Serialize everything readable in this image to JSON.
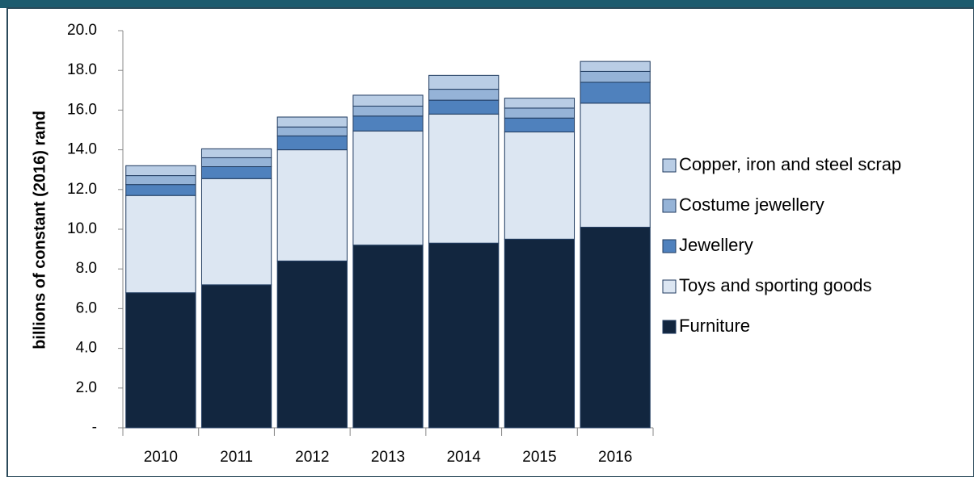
{
  "chart_data": {
    "type": "stacked_bar",
    "y_label": "billions of constant (2016) rand",
    "categories": [
      "2010",
      "2011",
      "2012",
      "2013",
      "2014",
      "2015",
      "2016"
    ],
    "series": [
      {
        "name": "Furniture",
        "color": "#12263f",
        "values": [
          6.8,
          7.2,
          8.4,
          9.2,
          9.3,
          9.5,
          10.1
        ]
      },
      {
        "name": "Toys and sporting goods",
        "color": "#dce6f2",
        "values": [
          4.9,
          5.35,
          5.6,
          5.75,
          6.5,
          5.4,
          6.25
        ]
      },
      {
        "name": "Jewellery",
        "color": "#4f81bd",
        "values": [
          0.55,
          0.6,
          0.7,
          0.75,
          0.7,
          0.7,
          1.05
        ]
      },
      {
        "name": "Costume jewellery",
        "color": "#95b3d7",
        "values": [
          0.45,
          0.45,
          0.45,
          0.5,
          0.55,
          0.5,
          0.55
        ]
      },
      {
        "name": "Copper, iron and steel scrap",
        "color": "#b9cde5",
        "values": [
          0.5,
          0.45,
          0.5,
          0.55,
          0.7,
          0.5,
          0.5
        ]
      }
    ],
    "ylim": [
      0,
      20
    ],
    "yticks": [
      {
        "value": 0,
        "label": "-"
      },
      {
        "value": 2,
        "label": "2.0"
      },
      {
        "value": 4,
        "label": "4.0"
      },
      {
        "value": 6,
        "label": "6.0"
      },
      {
        "value": 8,
        "label": "8.0"
      },
      {
        "value": 10,
        "label": "10.0"
      },
      {
        "value": 12,
        "label": "12.0"
      },
      {
        "value": 14,
        "label": "14.0"
      },
      {
        "value": 16,
        "label": "16.0"
      },
      {
        "value": 18,
        "label": "18.0"
      },
      {
        "value": 20,
        "label": "20.0"
      }
    ],
    "legend": "right",
    "grid": false
  }
}
